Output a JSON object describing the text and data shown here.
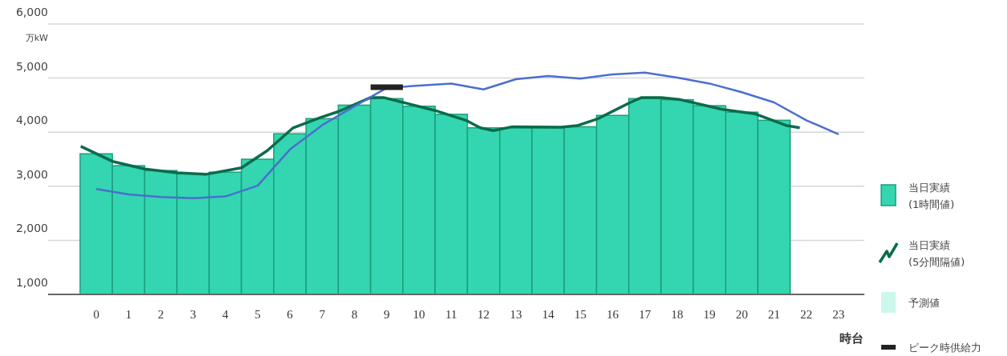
{
  "chart_data": {
    "type": "bar",
    "xlabel": "時台",
    "ylabel": "万kW",
    "xlim": [
      0,
      24.3
    ],
    "xticks": [
      {
        "value": 0.5,
        "label": "0"
      },
      {
        "value": 1.5,
        "label": "1"
      },
      {
        "value": 2.5,
        "label": "2"
      },
      {
        "value": 3.5,
        "label": "3"
      },
      {
        "value": 4.5,
        "label": "4"
      },
      {
        "value": 5.5,
        "label": "5"
      },
      {
        "value": 6.5,
        "label": "6"
      },
      {
        "value": 7.5,
        "label": "7"
      },
      {
        "value": 8.5,
        "label": "8"
      },
      {
        "value": 9.5,
        "label": "9"
      },
      {
        "value": 10.5,
        "label": "10"
      },
      {
        "value": 11.5,
        "label": "11"
      },
      {
        "value": 12.5,
        "label": "12"
      },
      {
        "value": 13.5,
        "label": "13"
      },
      {
        "value": 14.5,
        "label": "14"
      },
      {
        "value": 15.5,
        "label": "15"
      },
      {
        "value": 16.5,
        "label": "16"
      },
      {
        "value": 17.5,
        "label": "17"
      },
      {
        "value": 18.5,
        "label": "18"
      },
      {
        "value": 19.5,
        "label": "19"
      },
      {
        "value": 20.5,
        "label": "20"
      },
      {
        "value": 21.5,
        "label": "21"
      },
      {
        "value": 22.5,
        "label": "22"
      },
      {
        "value": 23.5,
        "label": "23"
      }
    ],
    "ylim": [
      1000,
      6000
    ],
    "yticks": [
      {
        "value": 1000,
        "label": "1,000"
      },
      {
        "value": 2000,
        "label": "2,000"
      },
      {
        "value": 3000,
        "label": "3,000"
      },
      {
        "value": 4000,
        "label": "4,000"
      },
      {
        "value": 5000,
        "label": "5,000"
      },
      {
        "value": 6000,
        "label": "6,000"
      }
    ],
    "grid": "y",
    "legend": "right",
    "series": [
      {
        "name": "当日実績\n(1時間値)",
        "color": "#33d6b0",
        "x": [
          0.5,
          1.5,
          2.5,
          3.5,
          4.5,
          5.5,
          6.5,
          7.5,
          8.5,
          9.5,
          10.5,
          11.5,
          12.5,
          13.5,
          14.5,
          15.5,
          16.5,
          17.5,
          18.5,
          19.5,
          20.5,
          21.5
        ],
        "values": [
          3600,
          3380,
          3290,
          3230,
          3260,
          3500,
          3970,
          4250,
          4500,
          4620,
          4480,
          4330,
          4080,
          4080,
          4080,
          4100,
          4310,
          4620,
          4600,
          4490,
          4370,
          4220
        ]
      },
      {
        "type": "line",
        "name": "当日実績\n(5分間隔値)",
        "color": "#0c6b4a",
        "x": [
          0.02,
          1.0,
          2.0,
          3.0,
          3.9,
          5.0,
          5.8,
          6.6,
          7.45,
          8.0,
          9.0,
          9.4,
          10.0,
          11.0,
          11.95,
          12.4,
          12.8,
          13.4,
          14.9,
          15.4,
          16.05,
          17.05,
          17.4,
          18.0,
          18.6,
          19.9,
          20.9,
          21.9,
          22.3
        ],
        "values": [
          3740,
          3460,
          3320,
          3250,
          3220,
          3340,
          3660,
          4080,
          4270,
          4380,
          4640,
          4640,
          4550,
          4400,
          4220,
          4080,
          4030,
          4100,
          4090,
          4120,
          4250,
          4550,
          4640,
          4640,
          4600,
          4420,
          4340,
          4120,
          4080
        ]
      },
      {
        "type": "bar",
        "name": "予測値",
        "color": "#ccf7ec"
      },
      {
        "type": "line",
        "color": "#4a6fcf",
        "x": [
          0.5,
          1.5,
          2.5,
          3.5,
          4.5,
          5.5,
          6.5,
          7.5,
          8.5,
          9.5,
          10.5,
          11.5,
          12.5,
          13.5,
          14.5,
          15.5,
          16.5,
          17.5,
          18.5,
          19.5,
          20.5,
          21.5,
          22.5,
          23.5
        ],
        "values": [
          2950,
          2850,
          2800,
          2780,
          2810,
          3010,
          3680,
          4130,
          4480,
          4820,
          4860,
          4900,
          4790,
          4980,
          5040,
          4990,
          5070,
          5100,
          5010,
          4900,
          4740,
          4550,
          4220,
          3960
        ]
      },
      {
        "type": "line",
        "name": "ピーク時供給力",
        "color": "#222222",
        "x": [
          9,
          10
        ],
        "values": [
          4830,
          4830
        ]
      }
    ]
  }
}
